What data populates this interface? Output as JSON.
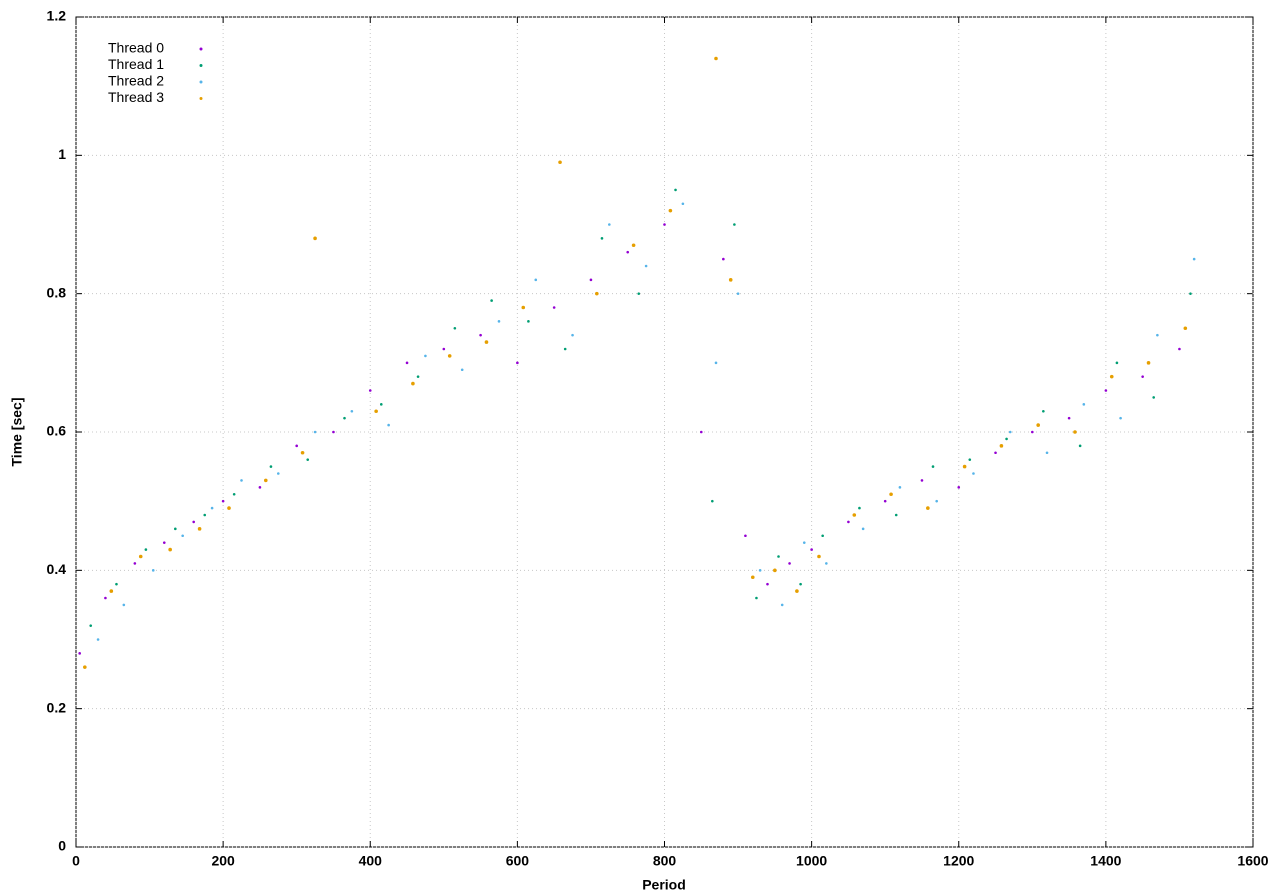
{
  "chart_data": {
    "type": "scatter",
    "x_label": "Period",
    "y_label": "Time [sec]",
    "xlim": [
      0,
      1600
    ],
    "ylim": [
      0,
      1.2
    ],
    "xticks": [
      0,
      200,
      400,
      600,
      800,
      1000,
      1200,
      1400,
      1600
    ],
    "yticks": [
      0,
      0.2,
      0.4,
      0.6,
      0.8,
      1,
      1.2
    ],
    "grid": true,
    "legend": "top-left",
    "series": [
      {
        "name": "Thread 0",
        "color": "#9400d3",
        "x": [
          5,
          40,
          80,
          120,
          160,
          200,
          250,
          300,
          350,
          400,
          450,
          500,
          550,
          600,
          650,
          700,
          750,
          800,
          850,
          880,
          910,
          940,
          970,
          1000,
          1050,
          1100,
          1150,
          1200,
          1250,
          1300,
          1350,
          1400,
          1450,
          1500
        ],
        "values": [
          0.28,
          0.36,
          0.41,
          0.44,
          0.47,
          0.5,
          0.52,
          0.58,
          0.6,
          0.66,
          0.7,
          0.72,
          0.74,
          0.7,
          0.78,
          0.82,
          0.86,
          0.9,
          0.6,
          0.85,
          0.45,
          0.38,
          0.41,
          0.43,
          0.47,
          0.5,
          0.53,
          0.52,
          0.57,
          0.6,
          0.62,
          0.66,
          0.68,
          0.72
        ]
      },
      {
        "name": "Thread 1",
        "color": "#009e73",
        "x": [
          20,
          55,
          95,
          135,
          175,
          215,
          265,
          315,
          365,
          415,
          465,
          515,
          565,
          615,
          665,
          715,
          765,
          815,
          865,
          895,
          925,
          955,
          985,
          1015,
          1065,
          1115,
          1165,
          1215,
          1265,
          1315,
          1365,
          1415,
          1465,
          1515
        ],
        "values": [
          0.32,
          0.38,
          0.43,
          0.46,
          0.48,
          0.51,
          0.55,
          0.56,
          0.62,
          0.64,
          0.68,
          0.75,
          0.79,
          0.76,
          0.72,
          0.88,
          0.8,
          0.95,
          0.5,
          0.9,
          0.36,
          0.42,
          0.38,
          0.45,
          0.49,
          0.48,
          0.55,
          0.56,
          0.59,
          0.63,
          0.58,
          0.7,
          0.65,
          0.8
        ]
      },
      {
        "name": "Thread 2",
        "color": "#56b4e9",
        "x": [
          30,
          65,
          105,
          145,
          185,
          225,
          275,
          325,
          375,
          425,
          475,
          525,
          575,
          625,
          675,
          725,
          775,
          825,
          870,
          900,
          930,
          960,
          990,
          1020,
          1070,
          1120,
          1170,
          1220,
          1270,
          1320,
          1370,
          1420,
          1470,
          1520
        ],
        "values": [
          0.3,
          0.35,
          0.4,
          0.45,
          0.49,
          0.53,
          0.54,
          0.6,
          0.63,
          0.61,
          0.71,
          0.69,
          0.76,
          0.82,
          0.74,
          0.9,
          0.84,
          0.93,
          0.7,
          0.8,
          0.4,
          0.35,
          0.44,
          0.41,
          0.46,
          0.52,
          0.5,
          0.54,
          0.6,
          0.57,
          0.64,
          0.62,
          0.74,
          0.85
        ]
      },
      {
        "name": "Thread 3",
        "color": "#e69f00",
        "x": [
          12,
          48,
          88,
          128,
          168,
          208,
          258,
          308,
          325,
          408,
          458,
          508,
          558,
          608,
          658,
          708,
          758,
          808,
          870,
          890,
          920,
          950,
          980,
          1010,
          1058,
          1108,
          1158,
          1208,
          1258,
          1308,
          1358,
          1408,
          1458,
          1508
        ],
        "values": [
          0.26,
          0.37,
          0.42,
          0.43,
          0.46,
          0.49,
          0.53,
          0.57,
          0.88,
          0.63,
          0.67,
          0.71,
          0.73,
          0.78,
          0.99,
          0.8,
          0.87,
          0.92,
          1.14,
          0.82,
          0.39,
          0.4,
          0.37,
          0.42,
          0.48,
          0.51,
          0.49,
          0.55,
          0.58,
          0.61,
          0.6,
          0.68,
          0.7,
          0.75
        ]
      }
    ]
  }
}
